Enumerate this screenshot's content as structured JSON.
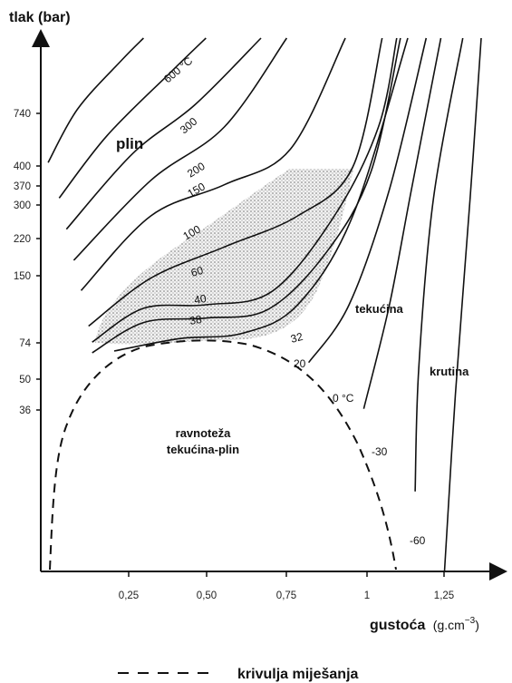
{
  "chart_data": {
    "type": "line",
    "title": "",
    "xlabel": "gustoća",
    "xunit": "(g.cm",
    "xunit_exp": "−3",
    "xunit_close": ")",
    "ylabel": "tlak (bar)",
    "xlim": [
      0,
      1.43
    ],
    "y_scale": "nonlinear (tick labels as printed)",
    "x_ticks": [
      "0,25",
      "0,50",
      "0,75",
      "1",
      "1,25"
    ],
    "y_ticks": [
      "740",
      "400",
      "370",
      "300",
      "220",
      "150",
      "74",
      "50",
      "36"
    ],
    "regions": {
      "gas": "plin",
      "liquid": "tekućina",
      "solid": "krutina",
      "equilibrium_line1": "ravnoteža",
      "equilibrium_line2": "tekućina-plin"
    },
    "isotherm_labels": [
      "600 °C",
      "300",
      "200",
      "150",
      "100",
      "60",
      "40",
      "38",
      "32",
      "20",
      "0 °C",
      "-30",
      "-60"
    ],
    "series": [
      {
        "label": "-60",
        "points": [
          [
            1.1,
            0
          ],
          [
            1.13,
            200
          ],
          [
            1.17,
            420
          ],
          [
            1.2,
            600
          ]
        ]
      },
      {
        "label": "-30",
        "points": [
          [
            1.02,
            90
          ],
          [
            1.03,
            230
          ],
          [
            1.07,
            420
          ],
          [
            1.15,
            600
          ]
        ]
      },
      {
        "label": "0 °C",
        "points": [
          [
            0.88,
            183
          ],
          [
            0.95,
            300
          ],
          [
            1.01,
            430
          ],
          [
            1.09,
            600
          ]
        ]
      },
      {
        "label": "20",
        "points": [
          [
            0.73,
            235
          ],
          [
            0.84,
            300
          ],
          [
            0.95,
            430
          ],
          [
            1.05,
            600
          ]
        ]
      },
      {
        "label": "32",
        "points": [
          [
            0.2,
            248
          ],
          [
            0.38,
            262
          ],
          [
            0.55,
            268
          ],
          [
            0.7,
            300
          ],
          [
            0.85,
            400
          ],
          [
            1.0,
            600
          ]
        ]
      },
      {
        "label": "38",
        "points": [
          [
            0.14,
            246
          ],
          [
            0.28,
            280
          ],
          [
            0.45,
            285
          ],
          [
            0.62,
            295
          ],
          [
            0.78,
            360
          ],
          [
            0.9,
            450
          ],
          [
            0.98,
            600
          ]
        ]
      },
      {
        "label": "40",
        "points": [
          [
            0.14,
            258
          ],
          [
            0.28,
            296
          ],
          [
            0.45,
            300
          ],
          [
            0.63,
            315
          ],
          [
            0.8,
            400
          ],
          [
            0.92,
            500
          ],
          [
            0.97,
            600
          ]
        ]
      },
      {
        "label": "60",
        "points": [
          [
            0.13,
            276
          ],
          [
            0.3,
            330
          ],
          [
            0.5,
            365
          ],
          [
            0.7,
            400
          ],
          [
            0.85,
            455
          ],
          [
            0.93,
            600
          ]
        ]
      },
      {
        "label": "100",
        "points": [
          [
            0.11,
            316
          ],
          [
            0.3,
            400
          ],
          [
            0.5,
            435
          ],
          [
            0.68,
            475
          ],
          [
            0.83,
            600
          ]
        ]
      },
      {
        "label": "150",
        "points": [
          [
            0.09,
            350
          ],
          [
            0.3,
            440
          ],
          [
            0.5,
            500
          ],
          [
            0.67,
            600
          ]
        ]
      },
      {
        "label": "200",
        "points": [
          [
            0.07,
            385
          ],
          [
            0.25,
            470
          ],
          [
            0.42,
            525
          ],
          [
            0.6,
            600
          ]
        ]
      },
      {
        "label": "300",
        "points": [
          [
            0.05,
            420
          ],
          [
            0.18,
            490
          ],
          [
            0.35,
            560
          ],
          [
            0.45,
            600
          ]
        ]
      },
      {
        "label": "600 °C",
        "points": [
          [
            0.02,
            460
          ],
          [
            0.1,
            520
          ],
          [
            0.22,
            575
          ],
          [
            0.28,
            600
          ]
        ]
      }
    ],
    "supercritical_region": "shaded",
    "legend": [
      {
        "style": "dashed",
        "label": "krivulja miješanja"
      }
    ],
    "legend_position": "bottom-center",
    "grid": false
  }
}
